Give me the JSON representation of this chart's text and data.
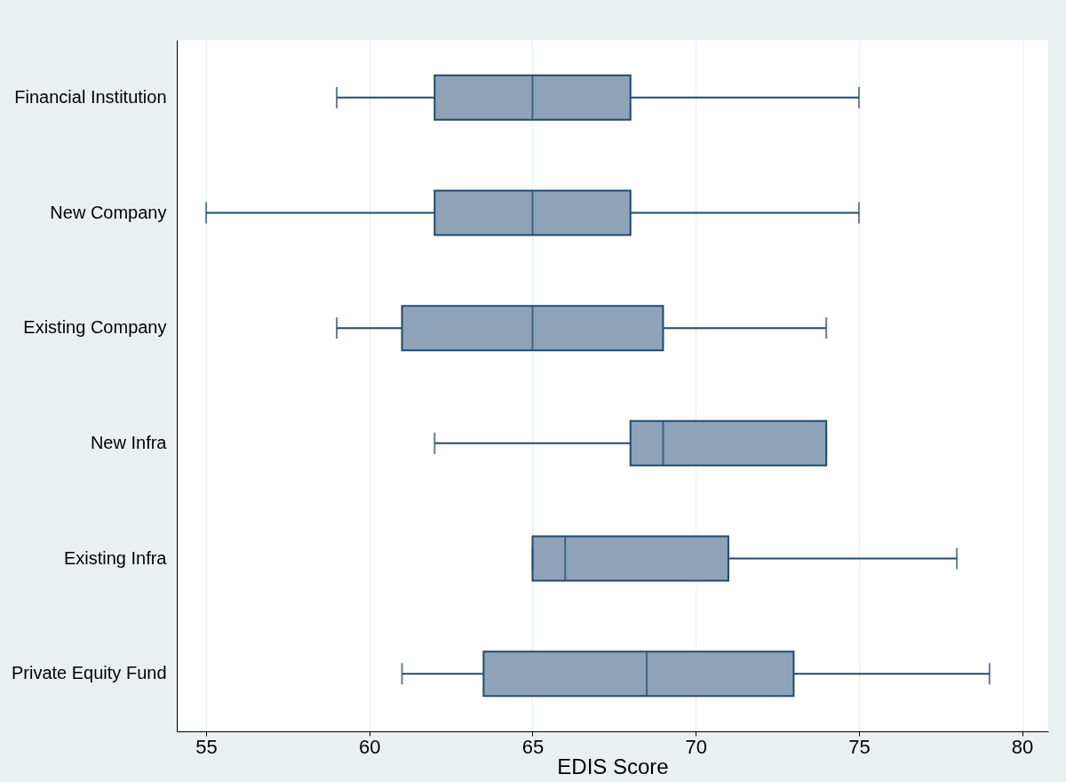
{
  "chart_data": {
    "type": "box",
    "orientation": "horizontal",
    "xlabel": "EDIS Score",
    "categories": [
      "Financial  Institution",
      "New Company",
      "Existing Company",
      "New Infra",
      "Existing Infra",
      "Private Equity Fund"
    ],
    "boxes": [
      {
        "low": 59,
        "q1": 62,
        "median": 65,
        "q3": 68,
        "high": 75
      },
      {
        "low": 55,
        "q1": 62,
        "median": 65,
        "q3": 68,
        "high": 75
      },
      {
        "low": 59,
        "q1": 61,
        "median": 65,
        "q3": 69,
        "high": 74
      },
      {
        "low": 62,
        "q1": 68,
        "median": 69,
        "q3": 74,
        "high": 74
      },
      {
        "low": 65,
        "q1": 65,
        "median": 66,
        "q3": 71,
        "high": 78
      },
      {
        "low": 61,
        "q1": 63.5,
        "median": 68.5,
        "q3": 73,
        "high": 79
      }
    ],
    "color": "#8ea3b8",
    "xlim": [
      54.1,
      80.8
    ],
    "xticks": [
      55,
      60,
      65,
      70,
      75,
      80
    ],
    "grid": "x"
  }
}
